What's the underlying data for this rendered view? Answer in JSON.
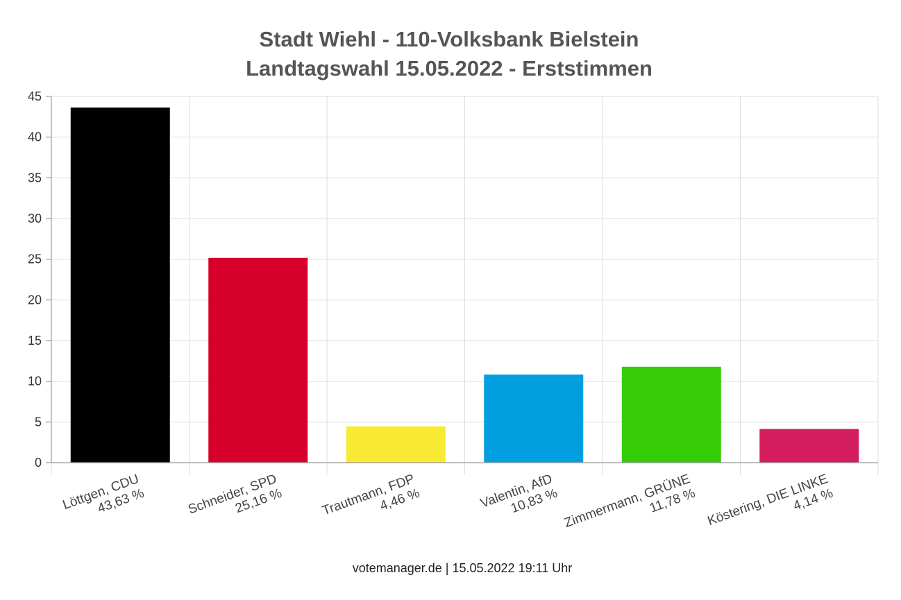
{
  "chart_data": {
    "type": "bar",
    "title_lines": [
      "Stadt Wiehl - 110-Volksbank Bielstein",
      "Landtagswahl 15.05.2022  - Erststimmen"
    ],
    "categories": [
      {
        "name": "Löttgen, CDU",
        "label": "43,63 %",
        "value": 43.63,
        "color": "#000000"
      },
      {
        "name": "Schneider, SPD",
        "label": "25,16 %",
        "value": 25.16,
        "color": "#d7002a"
      },
      {
        "name": "Trautmann, FDP",
        "label": "4,46 %",
        "value": 4.46,
        "color": "#f8ea33"
      },
      {
        "name": "Valentin, AfD",
        "label": "10,83 %",
        "value": 10.83,
        "color": "#029fe0"
      },
      {
        "name": "Zimmermann, GRÜNE",
        "label": "11,78 %",
        "value": 11.78,
        "color": "#35cc05"
      },
      {
        "name": "Köstering, DIE LINKE",
        "label": "4,14 %",
        "value": 4.14,
        "color": "#d31d5e"
      }
    ],
    "yticks": [
      "0",
      "5",
      "10",
      "15",
      "20",
      "25",
      "30",
      "35",
      "40",
      "45"
    ],
    "ylim": [
      0,
      45
    ],
    "grid": true,
    "legend": "none"
  },
  "footer": "votemanager.de | 15.05.2022 19:11 Uhr"
}
